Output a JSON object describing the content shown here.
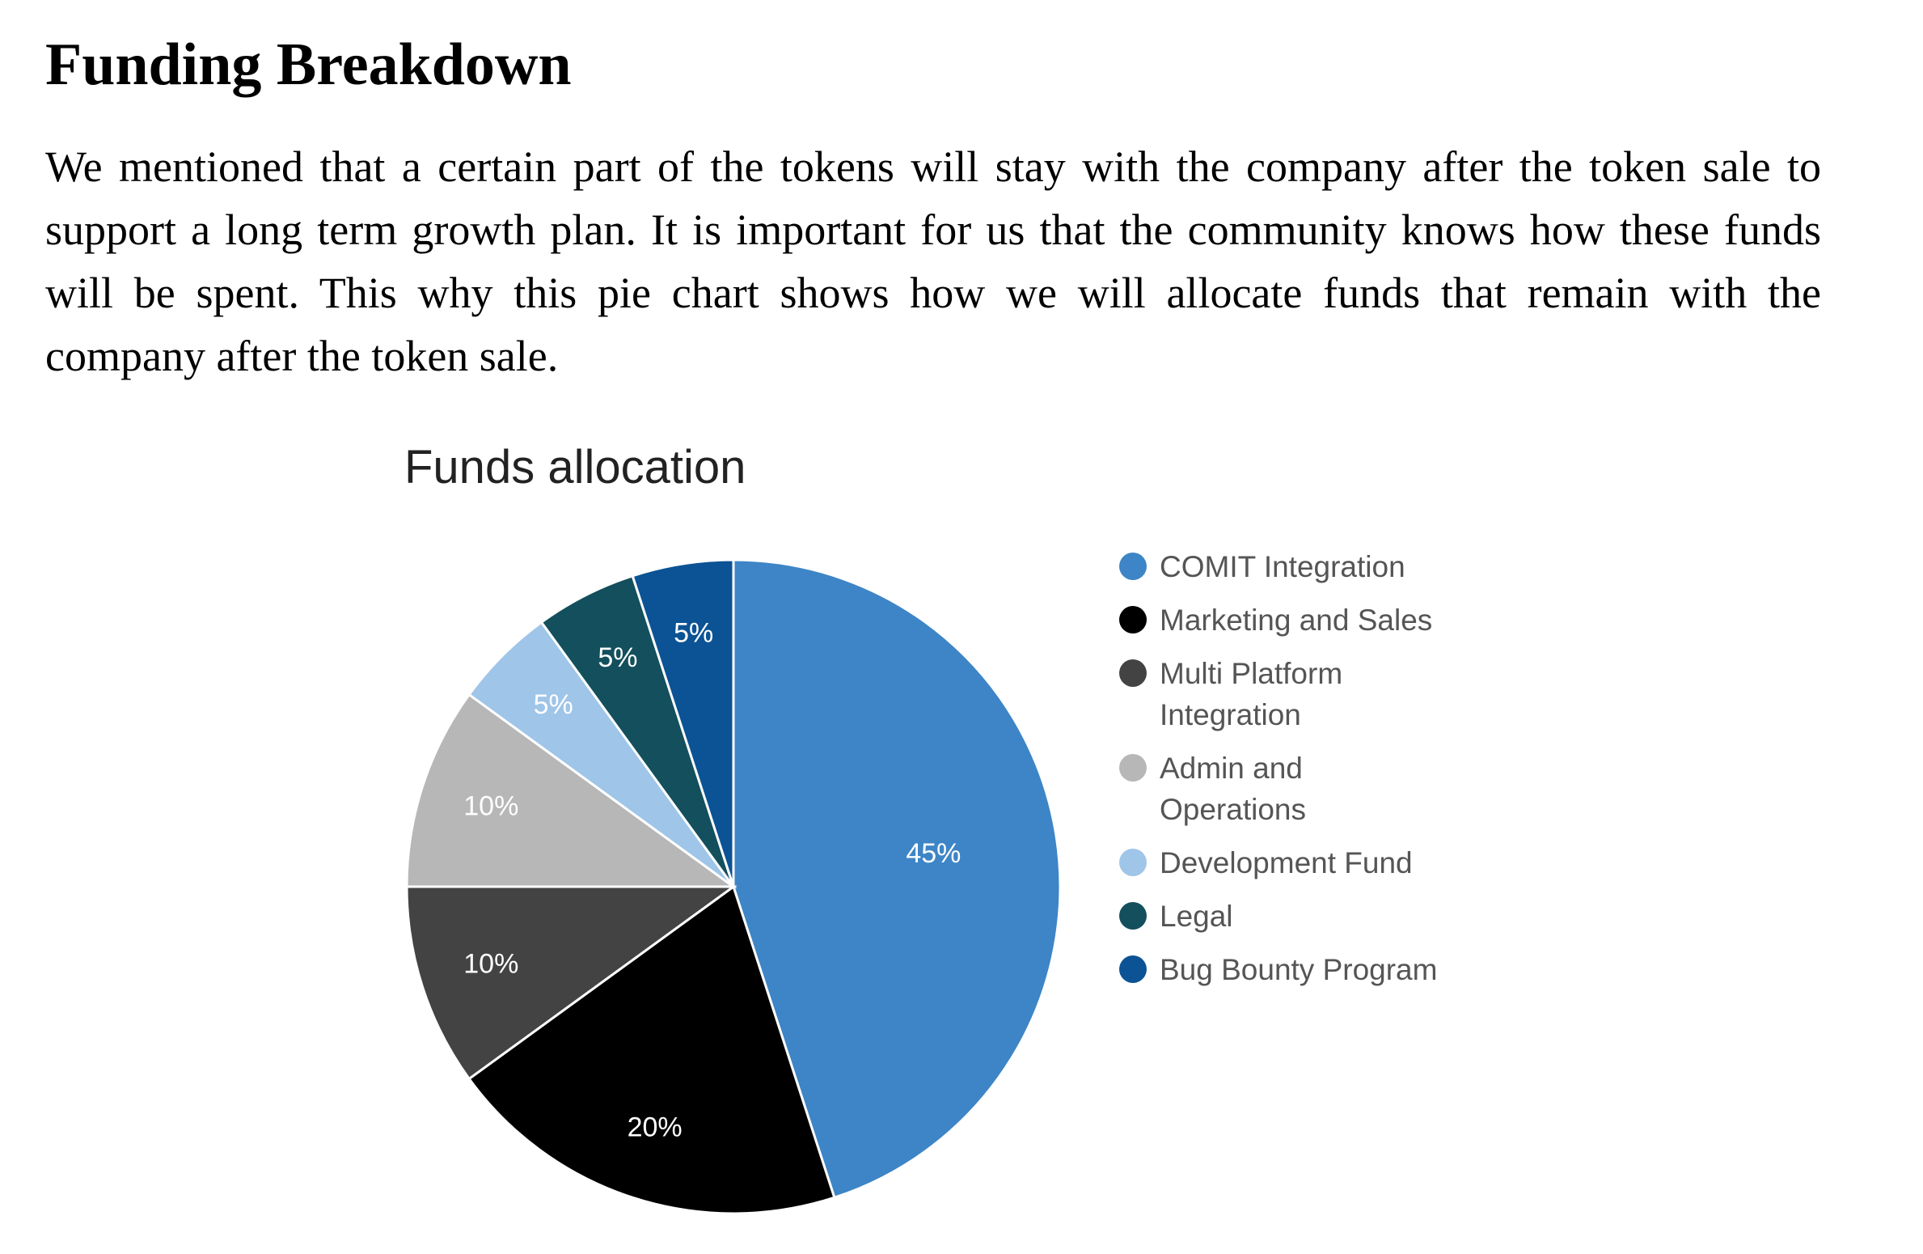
{
  "document": {
    "heading": "Funding Breakdown",
    "paragraph": "We mentioned that a certain part of the tokens will stay with the company after the token sale to support a long term growth plan. It is important for us that the community knows how these funds will be spent. This why this pie chart shows how we will allocate funds that remain with the company after the token sale."
  },
  "chart_data": {
    "type": "pie",
    "title": "Funds allocation",
    "legend_position": "right",
    "start_angle_deg": 0,
    "direction": "clockwise",
    "slices": [
      {
        "label": "COMIT Integration",
        "value": 45,
        "display": "45%",
        "color": "#3d85c6",
        "label_color": "#ffffff",
        "legend_lines": [
          "COMIT Integration"
        ]
      },
      {
        "label": "Marketing and Sales",
        "value": 20,
        "display": "20%",
        "color": "#000000",
        "label_color": "#ffffff",
        "legend_lines": [
          "Marketing and Sales"
        ]
      },
      {
        "label": "Multi Platform Integration",
        "value": 10,
        "display": "10%",
        "color": "#434343",
        "label_color": "#ffffff",
        "legend_lines": [
          "Multi Platform",
          "Integration"
        ]
      },
      {
        "label": "Admin and Operations",
        "value": 10,
        "display": "10%",
        "color": "#b7b7b7",
        "label_color": "#ffffff",
        "legend_lines": [
          "Admin and",
          "Operations"
        ]
      },
      {
        "label": "Development Fund",
        "value": 5,
        "display": "5%",
        "color": "#9fc5e8",
        "label_color": "#ffffff",
        "legend_lines": [
          "Development Fund"
        ]
      },
      {
        "label": "Legal",
        "value": 5,
        "display": "5%",
        "color": "#134f5c",
        "label_color": "#ffffff",
        "legend_lines": [
          "Legal"
        ]
      },
      {
        "label": "Bug Bounty Program",
        "value": 5,
        "display": "5%",
        "color": "#0b5394",
        "label_color": "#ffffff",
        "legend_lines": [
          "Bug Bounty Program"
        ]
      }
    ]
  }
}
